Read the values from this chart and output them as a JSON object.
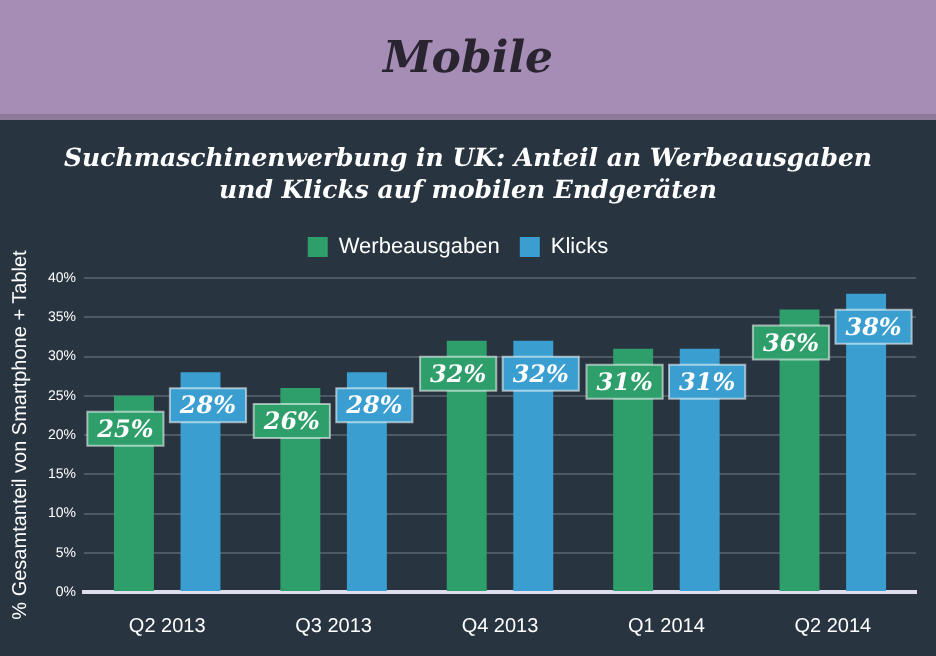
{
  "chart_data": {
    "type": "bar",
    "title": "Mobile",
    "subtitle": "Suchmaschinenwerbung in UK: Anteil an Werbeausgaben und Klicks auf mobilen Endgeräten",
    "ylabel": "% Gesamtanteil von Smartphone + Tablet",
    "categories": [
      "Q2 2013",
      "Q3 2013",
      "Q4 2013",
      "Q1 2014",
      "Q2 2014"
    ],
    "series": [
      {
        "name": "Werbeausgaben",
        "color": "#2e9e6b",
        "values": [
          25,
          26,
          32,
          31,
          36
        ],
        "value_labels": [
          "25%",
          "26%",
          "32%",
          "31%",
          "36%"
        ]
      },
      {
        "name": "Klicks",
        "color": "#3a9fd0",
        "values": [
          28,
          28,
          32,
          31,
          38
        ],
        "value_labels": [
          "28%",
          "28%",
          "32%",
          "31%",
          "38%"
        ]
      }
    ],
    "ylim": [
      0,
      40
    ],
    "yticks": [
      {
        "value": 0,
        "label": "0%"
      },
      {
        "value": 5,
        "label": "5%"
      },
      {
        "value": 10,
        "label": "10%"
      },
      {
        "value": 15,
        "label": "15%"
      },
      {
        "value": 20,
        "label": "20%"
      },
      {
        "value": 25,
        "label": "25%"
      },
      {
        "value": 30,
        "label": "30%"
      },
      {
        "value": 35,
        "label": "35%"
      },
      {
        "value": 40,
        "label": "40%"
      }
    ],
    "grid": "y",
    "legend": "top"
  }
}
